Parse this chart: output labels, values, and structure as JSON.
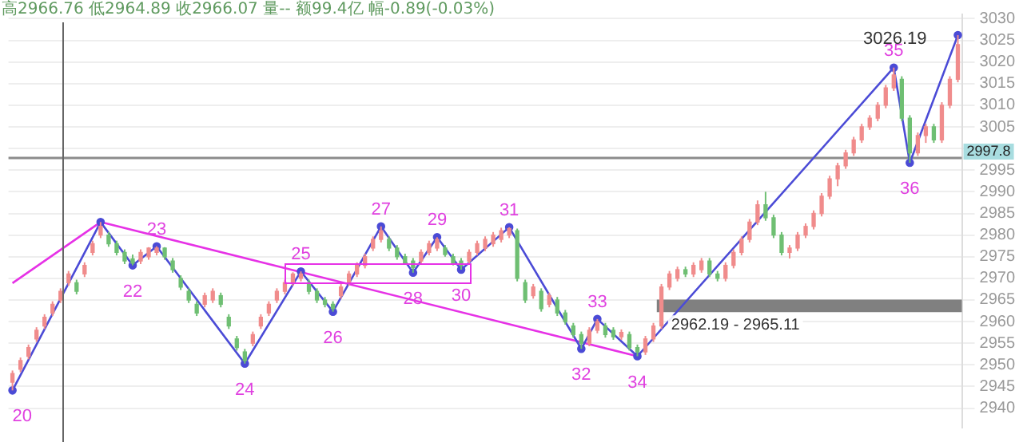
{
  "chart_data": {
    "type": "candlestick",
    "categories": [
      null,
      null,
      null,
      null,
      null,
      null,
      null,
      null,
      null,
      null,
      null,
      null,
      null,
      null,
      null,
      null,
      null,
      null,
      null,
      null,
      null,
      null,
      null,
      null,
      null,
      null,
      null,
      null,
      null,
      null,
      null,
      null,
      null,
      null,
      null,
      null,
      null,
      null,
      null,
      null,
      null,
      null,
      null,
      null,
      null,
      null,
      null,
      null,
      null,
      null,
      null,
      null,
      null,
      null,
      null,
      null,
      null,
      null,
      null,
      null,
      null,
      null,
      null,
      null,
      null,
      null,
      null,
      null,
      null,
      null,
      null,
      null,
      null,
      null,
      null,
      null,
      null,
      null,
      null,
      null,
      null,
      null,
      null,
      null,
      null,
      null,
      null,
      null,
      null,
      null,
      null,
      null,
      null,
      null,
      null,
      null,
      null,
      null,
      null,
      null,
      null,
      null,
      null,
      null,
      null,
      null,
      null,
      null,
      null,
      null,
      null,
      null,
      null,
      null,
      null,
      null,
      null,
      null,
      null
    ],
    "ohlc": [
      [
        2946,
        2948.7,
        2944.1,
        2948
      ],
      [
        2949,
        2951.7,
        2948.3,
        2951
      ],
      [
        2952,
        2954.7,
        2951.3,
        2954
      ],
      [
        2956,
        2958.7,
        2955.3,
        2958
      ],
      [
        2959,
        2961.7,
        2958.3,
        2961
      ],
      [
        2962,
        2964.7,
        2961.3,
        2964
      ],
      [
        2965,
        2967.7,
        2964.3,
        2967
      ],
      [
        2969,
        2971.7,
        2968.3,
        2971
      ],
      [
        2969,
        2969.7,
        2966.3,
        2967
      ],
      [
        2971,
        2973.7,
        2970.3,
        2973
      ],
      [
        2976,
        2978.7,
        2975.3,
        2978
      ],
      [
        2980,
        2983,
        2979.3,
        2982
      ],
      [
        2980,
        2980.7,
        2977.3,
        2978
      ],
      [
        2978,
        2978.7,
        2975.3,
        2976
      ],
      [
        2976,
        2976.7,
        2973.3,
        2974
      ],
      [
        2974.5,
        2975.5,
        2973,
        2973.5
      ],
      [
        2974,
        2976.7,
        2973.3,
        2976
      ],
      [
        2975,
        2977.2,
        2974.3,
        2977
      ],
      [
        2976,
        2977.4,
        2975.3,
        2977
      ],
      [
        2977,
        2977.2,
        2974.3,
        2975
      ],
      [
        2974,
        2974.7,
        2971.3,
        2972
      ],
      [
        2970,
        2970.7,
        2967.3,
        2968
      ],
      [
        2967,
        2967.7,
        2964.3,
        2965
      ],
      [
        2964,
        2964.7,
        2961.3,
        2962
      ],
      [
        2964,
        2966.7,
        2963.3,
        2966
      ],
      [
        2965,
        2967.7,
        2964.3,
        2967
      ],
      [
        2966,
        2966.7,
        2963.3,
        2964
      ],
      [
        2961,
        2961.7,
        2958.3,
        2959
      ],
      [
        2956,
        2956.7,
        2953.3,
        2954
      ],
      [
        2953,
        2953.7,
        2950.3,
        2951
      ],
      [
        2955,
        2957.7,
        2954.3,
        2957
      ],
      [
        2959,
        2961.7,
        2958.3,
        2961
      ],
      [
        2962,
        2964.7,
        2961.3,
        2964
      ],
      [
        2965,
        2967.7,
        2964.3,
        2967
      ],
      [
        2967,
        2969.7,
        2966.3,
        2969
      ],
      [
        2969,
        2971.4,
        2968.3,
        2971
      ],
      [
        2970,
        2971.6,
        2969.3,
        2971
      ],
      [
        2969,
        2969.7,
        2966.3,
        2967
      ],
      [
        2967,
        2967.7,
        2964.3,
        2965
      ],
      [
        2965,
        2965.7,
        2963.3,
        2964
      ],
      [
        2964,
        2964.7,
        2962.3,
        2963
      ],
      [
        2966,
        2968.7,
        2965.3,
        2968
      ],
      [
        2969,
        2971.7,
        2968.3,
        2971
      ],
      [
        2971,
        2973.7,
        2970.3,
        2973
      ],
      [
        2973,
        2975.7,
        2972.3,
        2975
      ],
      [
        2977,
        2979.7,
        2976.3,
        2979
      ],
      [
        2979,
        2982,
        2978.3,
        2981
      ],
      [
        2979,
        2979.7,
        2976.3,
        2977
      ],
      [
        2977,
        2977.7,
        2974.3,
        2975
      ],
      [
        2975,
        2975.7,
        2973.3,
        2973.5
      ],
      [
        2974,
        2974.7,
        2971.3,
        2972.5
      ],
      [
        2974,
        2976.7,
        2973.3,
        2976
      ],
      [
        2976,
        2978.7,
        2975.3,
        2978
      ],
      [
        2977,
        2979.5,
        2976.3,
        2979
      ],
      [
        2977,
        2977.7,
        2975,
        2975.5
      ],
      [
        2975,
        2975.7,
        2973,
        2973.5
      ],
      [
        2974,
        2974.7,
        2972,
        2973
      ],
      [
        2974,
        2976.7,
        2973.3,
        2976
      ],
      [
        2976,
        2978.7,
        2975.3,
        2978
      ],
      [
        2977,
        2979.7,
        2976.3,
        2979
      ],
      [
        2978,
        2980.7,
        2977.3,
        2980
      ],
      [
        2979,
        2981.7,
        2978.3,
        2981
      ],
      [
        2980,
        2981.8,
        2979.3,
        2981.5
      ],
      [
        2981,
        2981.5,
        2969.3,
        2970
      ],
      [
        2969,
        2969.7,
        2964.3,
        2965
      ],
      [
        2966,
        2968.7,
        2965.3,
        2968
      ],
      [
        2967,
        2967.7,
        2962.3,
        2963
      ],
      [
        2964,
        2966.7,
        2963.3,
        2966
      ],
      [
        2965,
        2965.7,
        2961.3,
        2962
      ],
      [
        2962,
        2962.7,
        2959.3,
        2960
      ],
      [
        2959,
        2959.7,
        2956.3,
        2957
      ],
      [
        2957,
        2957.7,
        2953.7,
        2955
      ],
      [
        2955,
        2958.7,
        2954.3,
        2958
      ],
      [
        2958,
        2960.6,
        2957.3,
        2960
      ],
      [
        2959,
        2959.7,
        2956.3,
        2957
      ],
      [
        2958,
        2958.7,
        2955.8,
        2956.5
      ],
      [
        2956.5,
        2958.2,
        2955.8,
        2957.5
      ],
      [
        2957,
        2957.7,
        2953.3,
        2954
      ],
      [
        2954,
        2954.7,
        2952,
        2953
      ],
      [
        2953,
        2956.7,
        2952.3,
        2956
      ],
      [
        2956,
        2959.7,
        2955.3,
        2959
      ],
      [
        2959,
        2968.7,
        2958.3,
        2968
      ],
      [
        2968,
        2971.7,
        2967.3,
        2971
      ],
      [
        2970,
        2972.7,
        2969.3,
        2972
      ],
      [
        2972,
        2972.7,
        2970.3,
        2971
      ],
      [
        2971,
        2973.7,
        2970.3,
        2973
      ],
      [
        2972,
        2974.7,
        2971.3,
        2974
      ],
      [
        2974,
        2974.7,
        2970.3,
        2971
      ],
      [
        2971,
        2971.7,
        2969.3,
        2970
      ],
      [
        2970,
        2973.7,
        2969.3,
        2973
      ],
      [
        2973,
        2976.7,
        2972.3,
        2976
      ],
      [
        2976,
        2979.7,
        2975.3,
        2979
      ],
      [
        2979,
        2983.7,
        2978.3,
        2983
      ],
      [
        2983,
        2988,
        2982.3,
        2987
      ],
      [
        2987,
        2990,
        2983.3,
        2984
      ],
      [
        2984,
        2984.7,
        2979.3,
        2980
      ],
      [
        2980,
        2980.7,
        2975.3,
        2976
      ],
      [
        2976,
        2977.7,
        2974.6,
        2977
      ],
      [
        2977,
        2980.7,
        2976.3,
        2980
      ],
      [
        2980,
        2982.7,
        2979.3,
        2982
      ],
      [
        2982,
        2985.7,
        2981.3,
        2985
      ],
      [
        2985,
        2989.7,
        2984.3,
        2989
      ],
      [
        2989,
        2993.7,
        2988.3,
        2993
      ],
      [
        2993,
        2996.7,
        2991.3,
        2996
      ],
      [
        2996,
        2999.7,
        2995.3,
        2999
      ],
      [
        2999,
        3002.7,
        2998.3,
        3002
      ],
      [
        3002,
        3005.7,
        3001.3,
        3005
      ],
      [
        3005,
        3007.7,
        3004.3,
        3007
      ],
      [
        3007,
        3010.7,
        3006.3,
        3010
      ],
      [
        3010,
        3014.7,
        3009.3,
        3014
      ],
      [
        3014,
        3018.7,
        3013.3,
        3017
      ],
      [
        3016,
        3016.7,
        3006.3,
        3007
      ],
      [
        3007,
        3007.7,
        2996.7,
        2999
      ],
      [
        2999,
        3003.7,
        2998.3,
        3003
      ],
      [
        3003,
        3005.7,
        3001.3,
        3005
      ],
      [
        3005,
        3005.7,
        3001.3,
        3002
      ],
      [
        3002,
        3010.7,
        3001.3,
        3010
      ],
      [
        3010,
        3016.7,
        3009.3,
        3016
      ],
      [
        3016,
        3026.19,
        3015.3,
        3024
      ]
    ],
    "colors": [
      "#f08c8c",
      "#f08c8c",
      "#f08c8c",
      "#f08c8c",
      "#f08c8c",
      "#f08c8c",
      "#f08c8c",
      "#f08c8c",
      "#6fbf73",
      "#f08c8c",
      "#f08c8c",
      "#f08c8c",
      "#6fbf73",
      "#6fbf73",
      "#6fbf73",
      "#6fbf73",
      "#f08c8c",
      "#f08c8c",
      "#f08c8c",
      "#6fbf73",
      "#6fbf73",
      "#6fbf73",
      "#6fbf73",
      "#6fbf73",
      "#f08c8c",
      "#f08c8c",
      "#6fbf73",
      "#6fbf73",
      "#6fbf73",
      "#6fbf73",
      "#f08c8c",
      "#f08c8c",
      "#f08c8c",
      "#f08c8c",
      "#f08c8c",
      "#f08c8c",
      "#f08c8c",
      "#6fbf73",
      "#6fbf73",
      "#6fbf73",
      "#6fbf73",
      "#f08c8c",
      "#f08c8c",
      "#f08c8c",
      "#f08c8c",
      "#f08c8c",
      "#f08c8c",
      "#6fbf73",
      "#6fbf73",
      "#6fbf73",
      "#6fbf73",
      "#f08c8c",
      "#f08c8c",
      "#f08c8c",
      "#6fbf73",
      "#6fbf73",
      "#6fbf73",
      "#f08c8c",
      "#f08c8c",
      "#f08c8c",
      "#f08c8c",
      "#f08c8c",
      "#f08c8c",
      "#6fbf73",
      "#6fbf73",
      "#f08c8c",
      "#6fbf73",
      "#f08c8c",
      "#6fbf73",
      "#6fbf73",
      "#6fbf73",
      "#6fbf73",
      "#f08c8c",
      "#f08c8c",
      "#6fbf73",
      "#6fbf73",
      "#f08c8c",
      "#6fbf73",
      "#6fbf73",
      "#f08c8c",
      "#f08c8c",
      "#f08c8c",
      "#f08c8c",
      "#f08c8c",
      "#6fbf73",
      "#f08c8c",
      "#f08c8c",
      "#6fbf73",
      "#6fbf73",
      "#f08c8c",
      "#f08c8c",
      "#f08c8c",
      "#f08c8c",
      "#f08c8c",
      "#6fbf73",
      "#6fbf73",
      "#6fbf73",
      "#f08c8c",
      "#f08c8c",
      "#f08c8c",
      "#f08c8c",
      "#f08c8c",
      "#f08c8c",
      "#f08c8c",
      "#f08c8c",
      "#f08c8c",
      "#f08c8c",
      "#f08c8c",
      "#f08c8c",
      "#f08c8c",
      "#f08c8c",
      "#6fbf73",
      "#6fbf73",
      "#f08c8c",
      "#f08c8c",
      "#6fbf73",
      "#f08c8c",
      "#f08c8c",
      "#f08c8c"
    ],
    "series": [
      {
        "type": "line",
        "color": "#4b4bd6",
        "marker": "circle",
        "values": [
          2944.1,
          null,
          null,
          null,
          null,
          null,
          null,
          null,
          null,
          null,
          null,
          2983,
          null,
          null,
          null,
          2973,
          null,
          null,
          2977.4,
          null,
          null,
          null,
          null,
          null,
          null,
          null,
          null,
          null,
          null,
          2950.3,
          null,
          null,
          null,
          null,
          null,
          null,
          2971.6,
          null,
          null,
          null,
          2962.3,
          null,
          null,
          null,
          null,
          null,
          2982,
          null,
          null,
          null,
          2971.3,
          null,
          null,
          2979.5,
          null,
          null,
          2972,
          null,
          null,
          null,
          null,
          null,
          2981.8,
          null,
          null,
          null,
          null,
          null,
          null,
          null,
          null,
          2953.7,
          null,
          2960.6,
          null,
          null,
          null,
          null,
          2952,
          null,
          null,
          null,
          null,
          null,
          null,
          null,
          null,
          null,
          null,
          null,
          null,
          null,
          null,
          null,
          null,
          null,
          null,
          null,
          null,
          null,
          null,
          null,
          null,
          null,
          null,
          null,
          null,
          null,
          null,
          null,
          3018.7,
          null,
          2996.7,
          null,
          null,
          null,
          null,
          null,
          3026.19
        ]
      },
      {
        "type": "line",
        "color": "#e632e6",
        "marker": "none",
        "values": [
          2968.9,
          null,
          null,
          null,
          null,
          null,
          null,
          null,
          null,
          null,
          null,
          2983,
          null,
          null,
          null,
          null,
          null,
          null,
          null,
          null,
          null,
          null,
          null,
          null,
          null,
          null,
          null,
          null,
          null,
          null,
          null,
          null,
          null,
          null,
          null,
          null,
          null,
          null,
          null,
          null,
          null,
          null,
          null,
          null,
          null,
          null,
          null,
          null,
          null,
          null,
          null,
          null,
          null,
          null,
          null,
          null,
          null,
          null,
          null,
          null,
          null,
          null,
          null,
          null,
          null,
          null,
          null,
          null,
          null,
          null,
          null,
          null,
          null,
          null,
          null,
          null,
          null,
          null,
          2952,
          null,
          null,
          null,
          null,
          null,
          null,
          null,
          null,
          null,
          null,
          null,
          null,
          null,
          null,
          null,
          null,
          null,
          null,
          null,
          null,
          null,
          null,
          null,
          null,
          null,
          null,
          null,
          null,
          null,
          null,
          null,
          null,
          null,
          null,
          null,
          null,
          null,
          null,
          null,
          null
        ]
      }
    ],
    "ylim": [
      2935.5,
      3031
    ],
    "yticks": [
      2940,
      2945,
      2950,
      2955,
      2960,
      2965,
      2970,
      2975,
      2980,
      2985,
      2990,
      2995,
      {
        "value": 3000,
        "label": null
      },
      3005,
      3010,
      3015,
      3020,
      3025,
      3030
    ],
    "tick_labels": "y",
    "grid": "y",
    "ref_lines": [
      {
        "axis": "y",
        "value": 2997.8,
        "label": "2997.8",
        "color": "#8c8c8c"
      }
    ],
    "bands": [
      {
        "axis": "y",
        "from": 2962.19,
        "to": 2965.11,
        "label": "2962.19 - 2965.11",
        "color": "#808080"
      }
    ],
    "annotations": [
      "高2966.76 低2964.89 收2966.07 量-- 额99.4亿 幅-0.89(-0.03%)",
      {
        "text": "20",
        "y": 2944.1
      },
      {
        "text": "22",
        "y": 2973
      },
      {
        "text": "23",
        "y": 2977.4
      },
      {
        "text": "24",
        "y": 2950.3
      },
      {
        "text": "25",
        "y": 2971.6
      },
      {
        "text": "26",
        "y": 2962.3
      },
      {
        "text": "27",
        "y": 2982
      },
      {
        "text": "28",
        "y": 2971.3
      },
      {
        "text": "29",
        "y": 2979.5
      },
      {
        "text": "30",
        "y": 2972
      },
      {
        "text": "31",
        "y": 2981.8
      },
      {
        "text": "32",
        "y": 2953.7
      },
      {
        "text": "33",
        "y": 2960.6
      },
      {
        "text": "34",
        "y": 2952
      },
      {
        "text": "35",
        "y": 3018.7
      },
      {
        "text": "36",
        "y": 2996.7
      },
      "3026.19"
    ]
  }
}
